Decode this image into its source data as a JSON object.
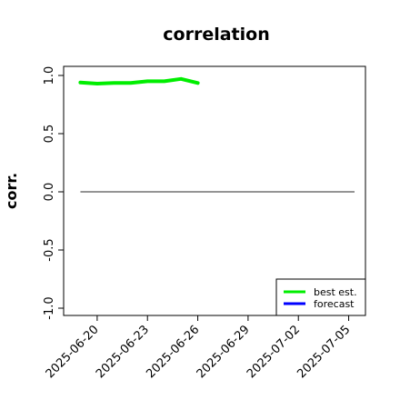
{
  "chart_data": {
    "type": "line",
    "title": "correlation",
    "xlabel": "",
    "ylabel": "corr.",
    "ylim": [
      -1.0,
      1.0
    ],
    "xlim": [
      "2025-06-18",
      "2025-07-06"
    ],
    "yticks": [
      "-1.0",
      "-0.5",
      "0.0",
      "0.5",
      "1.0"
    ],
    "xticks": [
      "2025-06-20",
      "2025-06-23",
      "2025-06-26",
      "2025-06-29",
      "2025-07-02",
      "2025-07-05"
    ],
    "highlight_xtick": "2025-06-26",
    "reference_line": {
      "y": 0.0,
      "color": "#555555"
    },
    "legend": {
      "placement": "bottom-right"
    },
    "series": [
      {
        "name": "best est.",
        "color": "#00ee00",
        "x": [
          "2025-06-19",
          "2025-06-20",
          "2025-06-21",
          "2025-06-22",
          "2025-06-23",
          "2025-06-24",
          "2025-06-25",
          "2025-06-26"
        ],
        "y": [
          0.94,
          0.93,
          0.935,
          0.935,
          0.95,
          0.95,
          0.97,
          0.935
        ]
      },
      {
        "name": "forecast",
        "color": "#0000ff",
        "x": [],
        "y": []
      }
    ]
  }
}
